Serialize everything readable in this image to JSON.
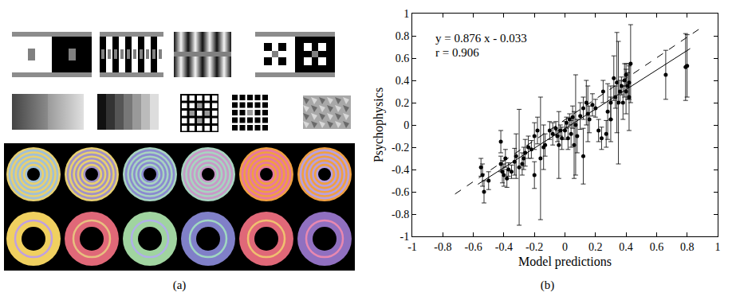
{
  "stimuli": {
    "label": "(a)"
  },
  "chart_data": {
    "type": "scatter",
    "label": "(b)",
    "x_label": "Model predictions",
    "y_label": "Psychophysics",
    "annotations": [
      "y = 0.876 x - 0.033",
      "r = 0.906"
    ],
    "color": "#000000",
    "marker": "circle",
    "grid": false,
    "xlim": [
      -1,
      1
    ],
    "ylim": [
      -1,
      1
    ],
    "xticks": [
      -1,
      -0.8,
      -0.6,
      -0.4,
      -0.2,
      0,
      0.2,
      0.4,
      0.6,
      0.8,
      1
    ],
    "yticks": [
      -1,
      -0.8,
      -0.6,
      -0.4,
      -0.2,
      0,
      0.2,
      0.4,
      0.6,
      0.8,
      1
    ],
    "x": [
      -0.55,
      -0.54,
      -0.53,
      -0.5,
      -0.42,
      -0.41,
      -0.4,
      -0.39,
      -0.38,
      -0.37,
      -0.35,
      -0.33,
      -0.32,
      -0.3,
      -0.28,
      -0.27,
      -0.26,
      -0.24,
      -0.22,
      -0.2,
      -0.2,
      -0.18,
      -0.16,
      -0.14,
      -0.13,
      -0.1,
      -0.08,
      -0.06,
      -0.05,
      -0.04,
      -0.03,
      -0.02,
      0,
      0.01,
      0.02,
      0.03,
      0.04,
      0.05,
      0.06,
      0.07,
      0.08,
      0.1,
      0.12,
      0.14,
      0.15,
      0.16,
      0.18,
      0.2,
      0.22,
      0.24,
      0.25,
      0.27,
      0.28,
      0.3,
      0.3,
      0.32,
      0.33,
      0.34,
      0.35,
      0.36,
      0.37,
      0.38,
      0.39,
      0.4,
      0.4,
      0.41,
      0.42,
      0.66,
      0.79,
      0.8,
      0.42,
      0.12,
      -0.42,
      0.43
    ],
    "y": [
      -0.38,
      -0.45,
      -0.6,
      -0.5,
      -0.35,
      -0.42,
      -0.45,
      -0.3,
      -0.48,
      -0.4,
      -0.42,
      -0.33,
      -0.28,
      -0.38,
      -0.35,
      -0.3,
      -0.25,
      -0.2,
      -0.22,
      -0.1,
      -0.45,
      -0.05,
      -0.3,
      -0.2,
      -0.18,
      -0.05,
      -0.08,
      -0.03,
      -0.1,
      -0.18,
      -0.05,
      -0.12,
      -0.05,
      0.02,
      -0.12,
      0.05,
      -0.08,
      0.07,
      -0.18,
      0.0,
      -0.1,
      0.08,
      0.15,
      0.2,
      0.1,
      0.05,
      0.18,
      0.15,
      -0.05,
      -0.12,
      0.3,
      -0.08,
      0.12,
      0.2,
      0.05,
      0.42,
      0.25,
      0.38,
      0.2,
      0.3,
      0.35,
      0.2,
      0.4,
      0.3,
      0.45,
      0.35,
      0.38,
      0.45,
      0.52,
      0.53,
      0.25,
      -0.28,
      -0.15,
      0.55
    ],
    "y_error": [
      0.08,
      0.1,
      0.1,
      0.08,
      0.07,
      0.1,
      0.1,
      0.08,
      0.08,
      0.06,
      0.06,
      0.12,
      0.2,
      0.52,
      0.1,
      0.1,
      0.12,
      0.1,
      0.08,
      0.12,
      0.12,
      0.12,
      0.55,
      0.2,
      0.1,
      0.08,
      0.1,
      0.06,
      0.05,
      0.3,
      0.05,
      0.1,
      0.08,
      0.05,
      0.1,
      0.05,
      0.12,
      0.1,
      0.3,
      0.45,
      0.15,
      0.12,
      0.1,
      0.2,
      0.25,
      0.12,
      0.1,
      0.08,
      0.1,
      0.1,
      0.1,
      0.12,
      0.25,
      0.15,
      0.2,
      0.2,
      0.1,
      0.45,
      0.55,
      0.1,
      0.08,
      0.15,
      0.15,
      0.2,
      0.1,
      0.12,
      0.15,
      0.22,
      0.3,
      0.28,
      0.3,
      0.25,
      0.1,
      0.35
    ],
    "fit_line": {
      "slope": 0.876,
      "intercept": -0.033,
      "x": [
        -0.57,
        0.82
      ],
      "line_style": "solid"
    },
    "reference_line": {
      "x": [
        -0.72,
        0.9
      ],
      "y": [
        -0.62,
        0.88
      ],
      "line_style": "dashed"
    }
  }
}
